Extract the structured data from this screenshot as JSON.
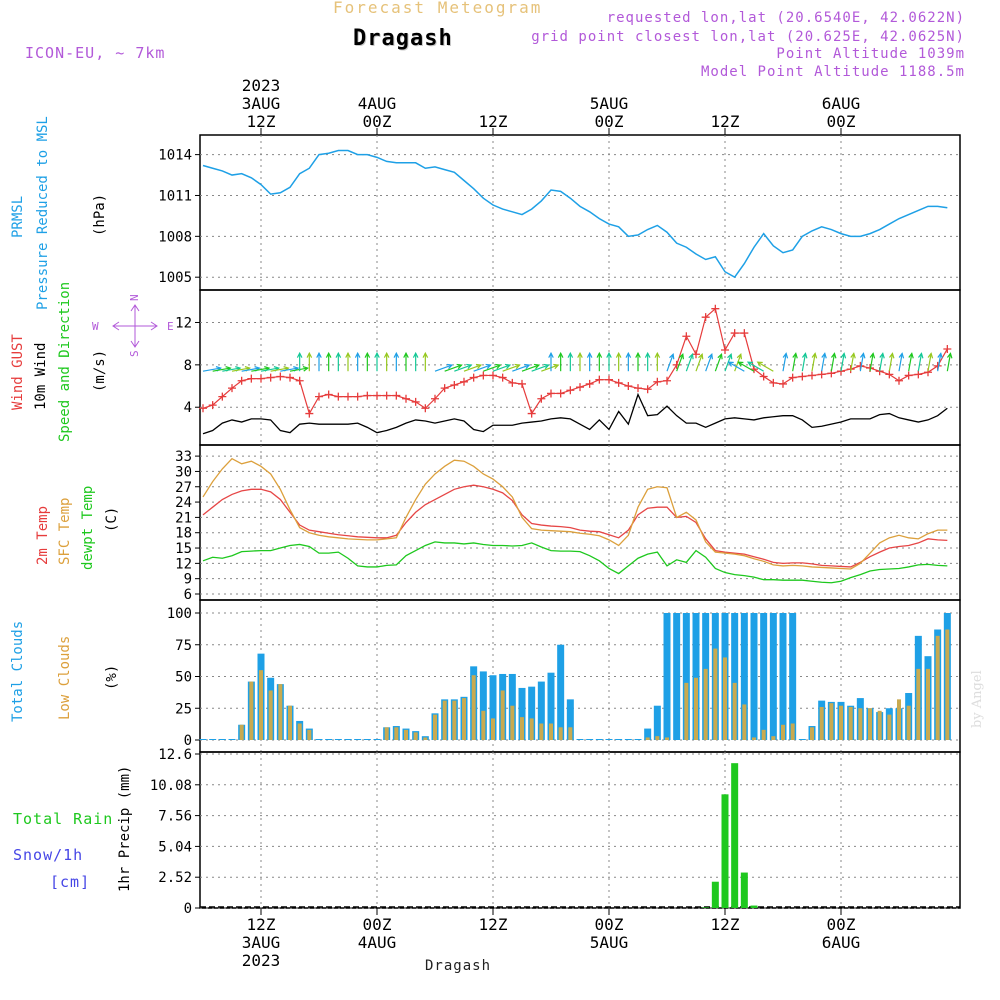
{
  "header": {
    "top_title": "Forecast Meteogram",
    "station": "Dragash",
    "model": "ICON-EU, ~ 7km",
    "requested": "requested lon,lat (20.6540E, 42.0622N)",
    "grid_point": "grid point closest lon,lat (20.625E, 42.0625N)",
    "point_alt": "Point Altitude 1039m",
    "model_alt": "Model Point Altitude 1188.5m"
  },
  "time_axis": {
    "top_labels": [
      {
        "lines": [
          "2023",
          "3AUG",
          "12Z"
        ]
      },
      {
        "lines": [
          "4AUG",
          "00Z"
        ]
      },
      {
        "lines": [
          "12Z"
        ]
      },
      {
        "lines": [
          "5AUG",
          "00Z"
        ]
      },
      {
        "lines": [
          "12Z"
        ]
      },
      {
        "lines": [
          "6AUG",
          "00Z"
        ]
      }
    ],
    "bottom_labels": [
      {
        "lines": [
          "12Z",
          "3AUG",
          "2023"
        ]
      },
      {
        "lines": [
          "00Z",
          "4AUG"
        ]
      },
      {
        "lines": [
          "12Z"
        ]
      },
      {
        "lines": [
          "00Z",
          "5AUG"
        ]
      },
      {
        "lines": [
          "12Z"
        ]
      },
      {
        "lines": [
          "00Z",
          "6AUG"
        ]
      }
    ],
    "bottom_station": "Dragash"
  },
  "panel_labels": {
    "p1_name": "PRMSL",
    "p1_desc": "Pressure Reduced to MSL",
    "p1_unit": "(hPa)",
    "p2_gust": "Wind GUST",
    "p2_wind": "10m Wind",
    "p2_dir": "Speed and Direction",
    "p2_unit": "(m/s)",
    "compass": {
      "w": "W",
      "e": "E",
      "n": "N",
      "s": "S"
    },
    "p3_t2m": "2m Temp",
    "p3_sfc": "SFC Temp",
    "p3_dew": "dewpt Temp",
    "p3_unit": "(C)",
    "p4_total": "Total Clouds",
    "p4_low": "Low Clouds",
    "p4_unit": "(%)",
    "p5_rain": "Total  Rain",
    "p5_snow": "Snow/1h",
    "p5_snow_unit": "[cm]",
    "p5_axis": "1hr Precip (mm)",
    "watermark": "by Angel"
  },
  "colors": {
    "pressure": "#1ea0e6",
    "gust": "#e63c3c",
    "wind": "#000000",
    "t2m": "#e64646",
    "sfc": "#dca03c",
    "dew": "#1ec81e",
    "total_cloud": "#1ea0e6",
    "low_cloud": "#c8aa50",
    "rain": "#1ec81e",
    "label_blue": "#1ea0e6",
    "label_red": "#e63c3c",
    "label_green": "#1ec81e",
    "label_orange": "#dca03c",
    "label_snow": "#4646e6"
  },
  "chart_data": [
    {
      "type": "line",
      "panel": "pressure",
      "ylabel": "(hPa)",
      "ylim": [
        1004.5,
        1015
      ],
      "yticks": [
        1005,
        1008,
        1011,
        1014
      ],
      "x_hours": [
        0,
        1,
        2,
        3,
        4,
        5,
        6,
        7,
        8,
        9,
        10,
        11,
        12,
        13,
        14,
        15,
        16,
        17,
        18,
        19,
        20,
        21,
        22,
        23,
        24,
        25,
        26,
        27,
        28,
        29,
        30,
        31,
        32,
        33,
        34,
        35,
        36,
        37,
        38,
        39,
        40,
        41,
        42,
        43,
        44,
        45,
        46,
        47,
        48,
        49,
        50,
        51,
        52,
        53,
        54,
        55,
        56,
        57,
        58,
        59,
        60,
        61,
        62,
        63,
        64,
        65,
        66,
        67,
        68,
        69,
        70,
        71,
        72,
        73,
        74,
        75,
        76,
        77
      ],
      "series": [
        {
          "name": "PRMSL",
          "values": [
            1013.2,
            1013.0,
            1012.8,
            1012.5,
            1012.6,
            1012.3,
            1011.8,
            1011.1,
            1011.2,
            1011.6,
            1012.6,
            1013.0,
            1014.0,
            1014.1,
            1014.3,
            1014.3,
            1014.0,
            1014.0,
            1013.8,
            1013.5,
            1013.4,
            1013.4,
            1013.4,
            1013.0,
            1013.1,
            1012.9,
            1012.7,
            1012.1,
            1011.5,
            1010.8,
            1010.3,
            1010.0,
            1009.8,
            1009.6,
            1010.0,
            1010.6,
            1011.4,
            1011.3,
            1010.8,
            1010.2,
            1009.8,
            1009.3,
            1008.9,
            1008.7,
            1008.0,
            1008.1,
            1008.5,
            1008.8,
            1008.3,
            1007.5,
            1007.2,
            1006.7,
            1006.3,
            1006.5,
            1005.4,
            1005.0,
            1006.0,
            1007.2,
            1008.2,
            1007.3,
            1006.8,
            1007.0,
            1008.0,
            1008.4,
            1008.7,
            1008.5,
            1008.2,
            1008.0,
            1008.0,
            1008.2,
            1008.5,
            1008.9,
            1009.3,
            1009.6,
            1009.9,
            1010.2,
            1010.2,
            1010.1
          ]
        }
      ]
    },
    {
      "type": "line",
      "panel": "wind",
      "ylabel": "(m/s)",
      "ylim": [
        1,
        14.5
      ],
      "yticks": [
        4,
        8,
        12
      ],
      "x_hours": [
        0,
        1,
        2,
        3,
        4,
        5,
        6,
        7,
        8,
        9,
        10,
        11,
        12,
        13,
        14,
        15,
        16,
        17,
        18,
        19,
        20,
        21,
        22,
        23,
        24,
        25,
        26,
        27,
        28,
        29,
        30,
        31,
        32,
        33,
        34,
        35,
        36,
        37,
        38,
        39,
        40,
        41,
        42,
        43,
        44,
        45,
        46,
        47,
        48,
        49,
        50,
        51,
        52,
        53,
        54,
        55,
        56,
        57,
        58,
        59,
        60,
        61,
        62,
        63,
        64,
        65,
        66,
        67,
        68,
        69,
        70,
        71,
        72,
        73,
        74,
        75,
        76,
        77
      ],
      "series": [
        {
          "name": "Wind GUST",
          "values": [
            3.9,
            4.2,
            5.0,
            5.8,
            6.5,
            6.7,
            6.7,
            6.8,
            6.9,
            6.8,
            6.5,
            3.4,
            5.0,
            5.2,
            5.0,
            5.0,
            5.0,
            5.1,
            5.1,
            5.1,
            5.1,
            4.8,
            4.5,
            3.9,
            4.8,
            5.8,
            6.1,
            6.4,
            6.8,
            7.0,
            7.0,
            6.8,
            6.3,
            6.2,
            3.4,
            4.8,
            5.3,
            5.3,
            5.6,
            5.9,
            6.2,
            6.6,
            6.6,
            6.3,
            6.0,
            5.8,
            5.7,
            6.4,
            6.5,
            8.0,
            10.7,
            9.0,
            12.5,
            13.3,
            9.4,
            11.0,
            11.0,
            7.6,
            6.9,
            6.3,
            6.2,
            6.8,
            6.9,
            7.0,
            7.1,
            7.2,
            7.4,
            7.6,
            7.9,
            7.7,
            7.4,
            7.1,
            6.5,
            7.0,
            7.1,
            7.3,
            7.9,
            9.5
          ]
        },
        {
          "name": "10m Wind",
          "values": [
            1.5,
            1.8,
            2.5,
            2.8,
            2.6,
            2.9,
            2.9,
            2.8,
            1.8,
            1.6,
            2.4,
            2.5,
            2.4,
            2.4,
            2.4,
            2.4,
            2.5,
            2.1,
            1.6,
            1.8,
            2.1,
            2.5,
            2.8,
            2.7,
            2.5,
            2.7,
            2.9,
            2.7,
            1.9,
            1.7,
            2.3,
            2.3,
            2.3,
            2.5,
            2.6,
            2.7,
            2.9,
            3.0,
            2.9,
            2.4,
            1.9,
            2.8,
            1.9,
            3.6,
            2.4,
            5.2,
            3.2,
            3.3,
            4.1,
            3.2,
            2.5,
            2.5,
            2.1,
            2.5,
            2.9,
            3.0,
            2.9,
            2.8,
            3.0,
            3.1,
            3.2,
            3.2,
            2.8,
            2.1,
            2.2,
            2.4,
            2.6,
            2.9,
            2.9,
            2.9,
            3.3,
            3.4,
            3.0,
            2.8,
            2.6,
            2.8,
            3.2,
            3.9
          ]
        }
      ]
    },
    {
      "type": "line",
      "panel": "temperature",
      "ylabel": "(C)",
      "ylim": [
        6,
        34
      ],
      "yticks": [
        6,
        9,
        12,
        15,
        18,
        21,
        24,
        27,
        30,
        33
      ],
      "x_hours": [
        0,
        1,
        2,
        3,
        4,
        5,
        6,
        7,
        8,
        9,
        10,
        11,
        12,
        13,
        14,
        15,
        16,
        17,
        18,
        19,
        20,
        21,
        22,
        23,
        24,
        25,
        26,
        27,
        28,
        29,
        30,
        31,
        32,
        33,
        34,
        35,
        36,
        37,
        38,
        39,
        40,
        41,
        42,
        43,
        44,
        45,
        46,
        47,
        48,
        49,
        50,
        51,
        52,
        53,
        54,
        55,
        56,
        57,
        58,
        59,
        60,
        61,
        62,
        63,
        64,
        65,
        66,
        67,
        68,
        69,
        70,
        71,
        72,
        73,
        74,
        75,
        76,
        77
      ],
      "series": [
        {
          "name": "2m Temp",
          "values": [
            21.5,
            23.0,
            24.5,
            25.5,
            26.2,
            26.5,
            26.5,
            26.0,
            24.5,
            22.0,
            19.5,
            18.5,
            18.2,
            17.9,
            17.6,
            17.4,
            17.2,
            17.1,
            17.0,
            17.0,
            17.5,
            20.0,
            22.0,
            23.5,
            24.5,
            25.5,
            26.5,
            27.0,
            27.3,
            27.0,
            26.5,
            25.8,
            24.3,
            21.5,
            19.8,
            19.5,
            19.3,
            19.2,
            19.0,
            18.5,
            18.3,
            18.2,
            17.6,
            17.0,
            18.5,
            21.5,
            22.8,
            23.0,
            23.0,
            21.0,
            21.2,
            20.0,
            16.8,
            14.5,
            14.2,
            14.0,
            13.8,
            13.3,
            12.8,
            12.2,
            12.0,
            12.1,
            12.1,
            11.9,
            11.6,
            11.5,
            11.4,
            11.3,
            12.2,
            13.3,
            14.2,
            15.0,
            15.3,
            15.5,
            16.0,
            16.8,
            16.6,
            16.5
          ]
        },
        {
          "name": "SFC Temp",
          "values": [
            25.0,
            28.0,
            30.5,
            32.5,
            31.5,
            32.0,
            31.0,
            29.5,
            26.5,
            22.5,
            19.0,
            18.0,
            17.5,
            17.2,
            17.0,
            16.8,
            16.7,
            16.6,
            16.6,
            16.8,
            17.0,
            21.0,
            24.5,
            27.5,
            29.5,
            31.0,
            32.2,
            32.0,
            31.0,
            29.5,
            28.5,
            27.0,
            25.0,
            21.0,
            18.8,
            18.5,
            18.4,
            18.3,
            18.2,
            17.9,
            17.7,
            17.4,
            16.6,
            15.5,
            17.5,
            23.0,
            26.5,
            27.0,
            26.8,
            21.0,
            22.0,
            20.5,
            16.2,
            14.2,
            14.0,
            13.8,
            13.5,
            12.9,
            12.4,
            11.7,
            11.5,
            11.6,
            11.5,
            11.3,
            11.2,
            11.1,
            11.0,
            10.9,
            12.0,
            14.0,
            16.0,
            17.0,
            17.5,
            17.0,
            16.8,
            17.8,
            18.5,
            18.5
          ]
        },
        {
          "name": "dewpt Temp",
          "values": [
            12.5,
            13.2,
            13.0,
            13.5,
            14.3,
            14.4,
            14.5,
            14.5,
            15.0,
            15.5,
            15.7,
            15.3,
            14.0,
            14.0,
            14.2,
            13.0,
            11.5,
            11.3,
            11.3,
            11.6,
            11.7,
            13.5,
            14.5,
            15.5,
            16.2,
            16.0,
            16.0,
            15.8,
            16.0,
            15.7,
            15.5,
            15.5,
            15.4,
            15.5,
            16.0,
            15.2,
            14.5,
            14.4,
            14.4,
            14.3,
            13.5,
            12.5,
            11.0,
            10.0,
            11.5,
            13.0,
            13.8,
            14.2,
            11.5,
            12.7,
            12.2,
            14.5,
            13.2,
            11.0,
            10.2,
            9.8,
            9.6,
            9.3,
            8.8,
            8.8,
            8.7,
            8.7,
            8.7,
            8.5,
            8.3,
            8.2,
            8.5,
            9.2,
            9.8,
            10.5,
            10.8,
            10.9,
            11.0,
            11.3,
            11.7,
            11.8,
            11.6,
            11.5
          ]
        }
      ]
    },
    {
      "type": "bar",
      "panel": "clouds",
      "ylabel": "(%)",
      "ylim": [
        0,
        100
      ],
      "yticks": [
        0,
        25,
        50,
        75,
        100
      ],
      "x_hours": [
        0,
        1,
        2,
        3,
        4,
        5,
        6,
        7,
        8,
        9,
        10,
        11,
        12,
        13,
        14,
        15,
        16,
        17,
        18,
        19,
        20,
        21,
        22,
        23,
        24,
        25,
        26,
        27,
        28,
        29,
        30,
        31,
        32,
        33,
        34,
        35,
        36,
        37,
        38,
        39,
        40,
        41,
        42,
        43,
        44,
        45,
        46,
        47,
        48,
        49,
        50,
        51,
        52,
        53,
        54,
        55,
        56,
        57,
        58,
        59,
        60,
        61,
        62,
        63,
        64,
        65,
        66,
        67,
        68,
        69,
        70,
        71,
        72,
        73,
        74,
        75,
        76,
        77
      ],
      "series": [
        {
          "name": "Total Clouds",
          "values": [
            0,
            0,
            0,
            0,
            12,
            46,
            68,
            49,
            44,
            27,
            15,
            9,
            0,
            0,
            0,
            0,
            0,
            0,
            0,
            10,
            11,
            9,
            7,
            3,
            21,
            32,
            32,
            34,
            58,
            54,
            51,
            52,
            52,
            41,
            42,
            46,
            53,
            75,
            32,
            0,
            0,
            0,
            0,
            0,
            0,
            0,
            9,
            27,
            100,
            100,
            100,
            100,
            100,
            100,
            100,
            100,
            100,
            100,
            100,
            100,
            100,
            100,
            0,
            11,
            31,
            30,
            30,
            27,
            33,
            25,
            22,
            25,
            25,
            37,
            82,
            66,
            87,
            100
          ]
        },
        {
          "name": "Low Clouds",
          "values": [
            0,
            0,
            0,
            0,
            12,
            46,
            55,
            39,
            44,
            27,
            13,
            8,
            0,
            0,
            0,
            0,
            0,
            0,
            0,
            10,
            10,
            8,
            6,
            2,
            20,
            31,
            31,
            33,
            51,
            23,
            17,
            39,
            27,
            18,
            17,
            13,
            13,
            10,
            10,
            0,
            0,
            0,
            0,
            0,
            0,
            0,
            2,
            3,
            2,
            0,
            45,
            49,
            56,
            72,
            65,
            45,
            28,
            2,
            8,
            3,
            12,
            13,
            0,
            10,
            26,
            29,
            27,
            26,
            25,
            25,
            23,
            20,
            32,
            27,
            56,
            56,
            82,
            87
          ]
        }
      ]
    },
    {
      "type": "bar",
      "panel": "precipitation",
      "ylabel": "1hr Precip (mm)",
      "ylim": [
        0,
        12.6
      ],
      "yticks": [
        0,
        2.52,
        5.04,
        7.56,
        10.08,
        12.6
      ],
      "x_hours": [
        52,
        53,
        54,
        55,
        56,
        57
      ],
      "series": [
        {
          "name": "Total Rain",
          "values": [
            0.05,
            2.15,
            9.3,
            11.85,
            2.9,
            0.2
          ]
        }
      ]
    }
  ]
}
